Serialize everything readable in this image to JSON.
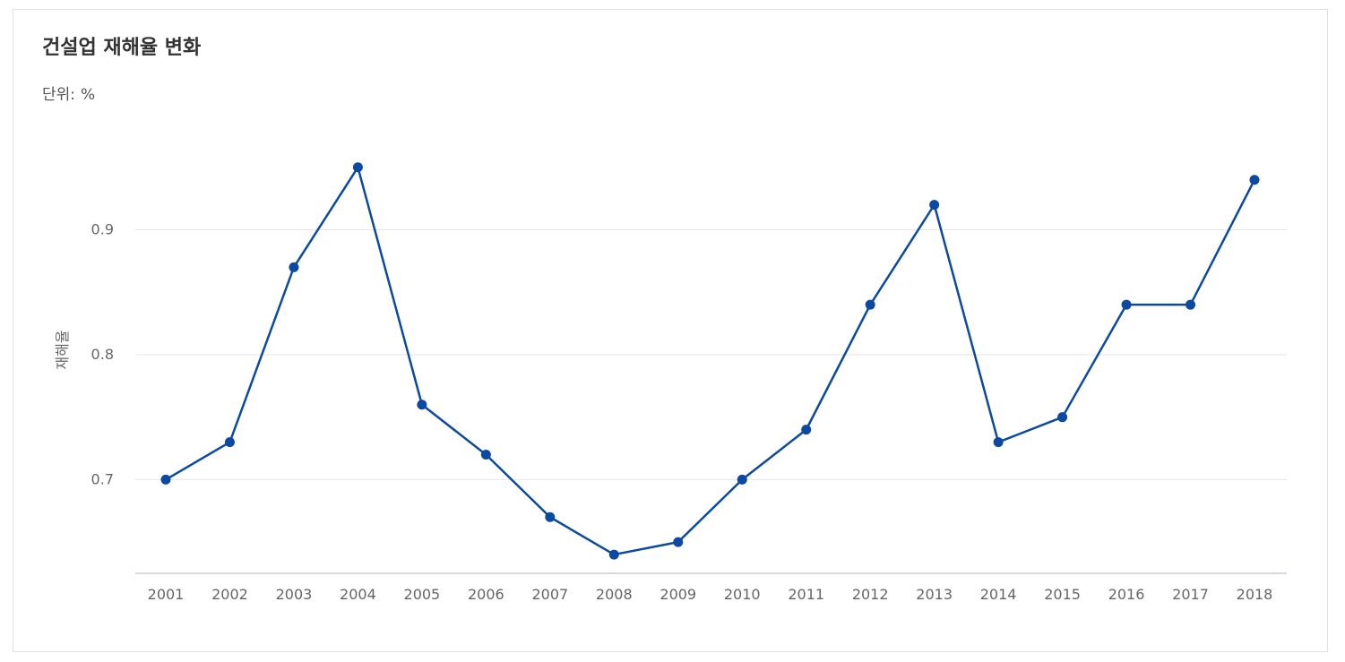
{
  "chart_data": {
    "type": "line",
    "title": "건설업 재해율 변화",
    "unit_label": "단위:",
    "unit_value": "%",
    "xlabel": "",
    "ylabel": "재해율",
    "x": [
      "2001",
      "2002",
      "2003",
      "2004",
      "2005",
      "2006",
      "2007",
      "2008",
      "2009",
      "2010",
      "2011",
      "2012",
      "2013",
      "2014",
      "2015",
      "2016",
      "2017",
      "2018"
    ],
    "series": [
      {
        "values": [
          0.7,
          0.73,
          0.87,
          0.95,
          0.76,
          0.72,
          0.67,
          0.64,
          0.65,
          0.7,
          0.74,
          0.84,
          0.92,
          0.73,
          0.75,
          0.84,
          0.84,
          0.94
        ]
      }
    ],
    "yticks": [
      0.7,
      0.8,
      0.9
    ],
    "ytick_labels": [
      "0.7",
      "0.8",
      "0.9"
    ],
    "ylim": [
      0.625,
      0.99
    ],
    "grid": true,
    "legend": "none",
    "colors": {
      "line": "#0b4aa0",
      "grid": "#e6e6e6",
      "axis": "#c9cbe0"
    }
  }
}
